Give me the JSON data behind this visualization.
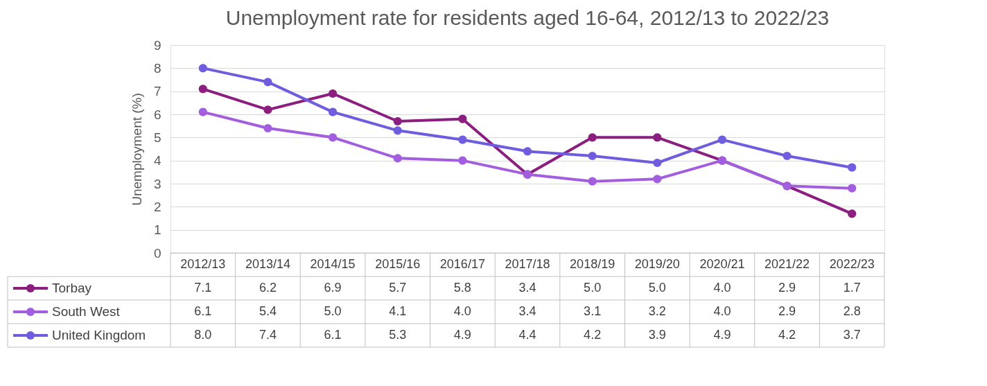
{
  "chart_data": {
    "type": "line",
    "title": "Unemployment rate for residents aged 16-64, 2012/13 to 2022/23",
    "ylabel": "Unemployment (%)",
    "categories": [
      "2012/13",
      "2013/14",
      "2014/15",
      "2015/16",
      "2016/17",
      "2017/18",
      "2018/19",
      "2019/20",
      "2020/21",
      "2021/22",
      "2022/23"
    ],
    "series": [
      {
        "name": "Torbay",
        "color": "#8b1e7e",
        "values": [
          7.1,
          6.2,
          6.9,
          5.7,
          5.8,
          3.4,
          5.0,
          5.0,
          4.0,
          2.9,
          1.7
        ],
        "value_labels": [
          "7.1",
          "6.2",
          "6.9",
          "5.7",
          "5.8",
          "3.4",
          "5.0",
          "5.0",
          "4.0",
          "2.9",
          "1.7"
        ]
      },
      {
        "name": "South West",
        "color": "#a35ee0",
        "values": [
          6.1,
          5.4,
          5.0,
          4.1,
          4.0,
          3.4,
          3.1,
          3.2,
          4.0,
          2.9,
          2.8
        ],
        "value_labels": [
          "6.1",
          "5.4",
          "5.0",
          "4.1",
          "4.0",
          "3.4",
          "3.1",
          "3.2",
          "4.0",
          "2.9",
          "2.8"
        ]
      },
      {
        "name": "United Kingdom",
        "color": "#6f5ddf",
        "values": [
          8.0,
          7.4,
          6.1,
          5.3,
          4.9,
          4.4,
          4.2,
          3.9,
          4.9,
          4.2,
          3.7
        ],
        "value_labels": [
          "8.0",
          "7.4",
          "6.1",
          "5.3",
          "4.9",
          "4.4",
          "4.2",
          "3.9",
          "4.9",
          "4.2",
          "3.7"
        ]
      }
    ],
    "ylim": [
      0,
      9
    ],
    "yticks": [
      0,
      1,
      2,
      3,
      4,
      5,
      6,
      7,
      8,
      9
    ],
    "grid": "y",
    "legend": "bottom",
    "marker": "circle",
    "line_style": "solid"
  }
}
